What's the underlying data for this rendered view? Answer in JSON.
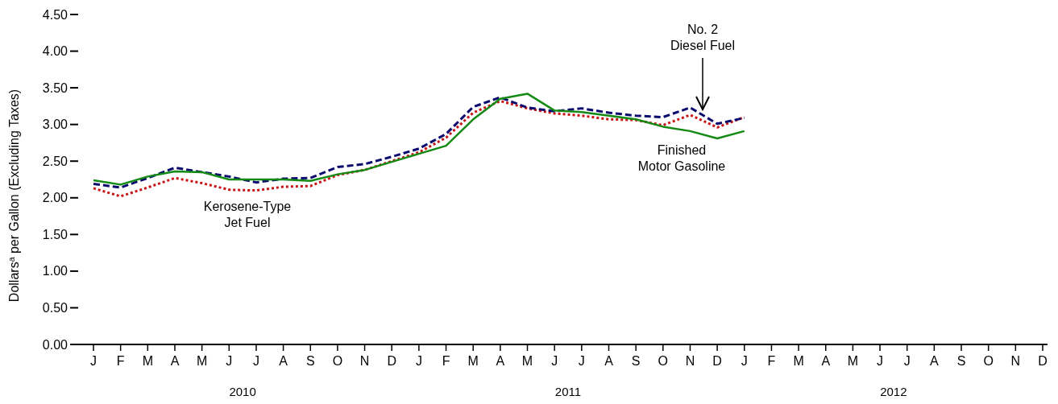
{
  "chart_data": {
    "type": "line",
    "ylabel": "Dollars$^{a}$ per Gallon (Excluding Taxes)",
    "categories": [
      "J",
      "F",
      "M",
      "A",
      "M",
      "J",
      "J",
      "A",
      "S",
      "O",
      "N",
      "D",
      "J",
      "F",
      "M",
      "A",
      "M",
      "J",
      "J",
      "A",
      "S",
      "O",
      "N",
      "D",
      "J",
      "F",
      "M",
      "A",
      "M",
      "J",
      "J",
      "A",
      "S",
      "O",
      "N",
      "D"
    ],
    "ylim": [
      0,
      4.5
    ],
    "yticks": [
      {
        "value": 0,
        "label": "0.00"
      },
      {
        "value": 0.5,
        "label": "0.50"
      },
      {
        "value": 1,
        "label": "1.00"
      },
      {
        "value": 1.5,
        "label": "1.50"
      },
      {
        "value": 2,
        "label": "2.00"
      },
      {
        "value": 2.5,
        "label": "2.50"
      },
      {
        "value": 3,
        "label": "3.00"
      },
      {
        "value": 3.5,
        "label": "3.50"
      },
      {
        "value": 4,
        "label": "4.00"
      },
      {
        "value": 4.5,
        "label": "4.50"
      }
    ],
    "grid": false,
    "series": [
      {
        "name": "Finished Motor Gasoline",
        "color": "#138a13",
        "line_style": "solid",
        "values": [
          2.24,
          2.18,
          2.29,
          2.36,
          2.35,
          2.25,
          2.25,
          2.25,
          2.23,
          2.32,
          2.38,
          2.49,
          2.6,
          2.71,
          3.07,
          3.35,
          3.42,
          3.19,
          3.17,
          3.12,
          3.07,
          2.97,
          2.91,
          2.81,
          2.91,
          null,
          null,
          null,
          null,
          null,
          null,
          null,
          null,
          null,
          null,
          null
        ]
      },
      {
        "name": "No. 2 Diesel Fuel",
        "color": "#0a0a6e",
        "line_style": "dashed",
        "values": [
          2.19,
          2.14,
          2.27,
          2.41,
          2.35,
          2.29,
          2.21,
          2.26,
          2.27,
          2.42,
          2.46,
          2.56,
          2.67,
          2.87,
          3.24,
          3.37,
          3.23,
          3.18,
          3.22,
          3.16,
          3.12,
          3.1,
          3.23,
          3.01,
          3.09,
          null,
          null,
          null,
          null,
          null,
          null,
          null,
          null,
          null,
          null,
          null
        ]
      },
      {
        "name": "Kerosene-Type Jet Fuel",
        "color": "#c81414",
        "line_style": "dotted",
        "values": [
          2.13,
          2.02,
          2.14,
          2.27,
          2.2,
          2.11,
          2.1,
          2.15,
          2.16,
          2.31,
          2.38,
          2.5,
          2.62,
          2.82,
          3.16,
          3.32,
          3.22,
          3.15,
          3.12,
          3.07,
          3.06,
          2.99,
          3.13,
          2.96,
          3.1,
          null,
          null,
          null,
          null,
          null,
          null,
          null,
          null,
          null,
          null,
          null
        ]
      }
    ],
    "annotations": [
      "2010",
      "2011",
      "2012"
    ]
  }
}
